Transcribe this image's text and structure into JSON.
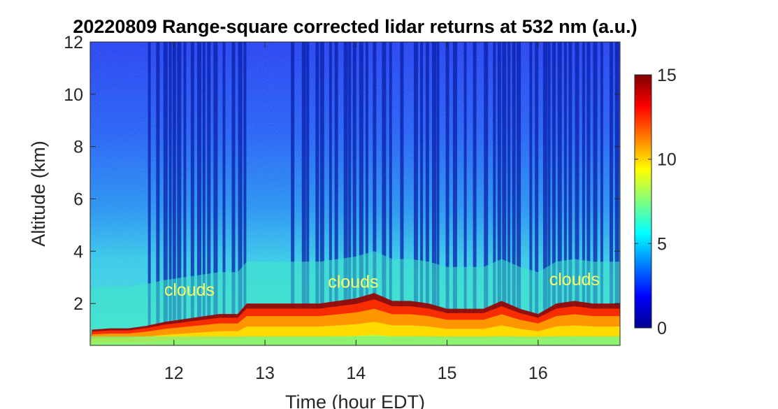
{
  "chart_data": {
    "type": "heatmap",
    "title": "20220809  Range-square corrected lidar returns at 532 nm (a.u.)",
    "xlabel": "Time (hour EDT)",
    "ylabel": "Altitude (km)",
    "xlim": [
      11.08,
      16.9
    ],
    "ylim": [
      0.4,
      12
    ],
    "x_ticks": [
      12,
      13,
      14,
      15,
      16
    ],
    "y_ticks": [
      2,
      4,
      6,
      8,
      10,
      12
    ],
    "colorbar": {
      "min": 0,
      "max": 15,
      "ticks": [
        0,
        5,
        10,
        15
      ],
      "colormap": "jet"
    },
    "cloud_top_km": [
      {
        "x": 11.1,
        "y": 1.0
      },
      {
        "x": 11.3,
        "y": 1.05
      },
      {
        "x": 11.5,
        "y": 1.05
      },
      {
        "x": 11.7,
        "y": 1.15
      },
      {
        "x": 11.9,
        "y": 1.3
      },
      {
        "x": 12.1,
        "y": 1.4
      },
      {
        "x": 12.3,
        "y": 1.5
      },
      {
        "x": 12.5,
        "y": 1.6
      },
      {
        "x": 12.7,
        "y": 1.6
      },
      {
        "x": 12.8,
        "y": 2.0
      },
      {
        "x": 13.0,
        "y": 2.0
      },
      {
        "x": 13.2,
        "y": 2.0
      },
      {
        "x": 13.4,
        "y": 2.0
      },
      {
        "x": 13.6,
        "y": 2.0
      },
      {
        "x": 13.8,
        "y": 2.1
      },
      {
        "x": 14.0,
        "y": 2.2
      },
      {
        "x": 14.2,
        "y": 2.4
      },
      {
        "x": 14.4,
        "y": 2.1
      },
      {
        "x": 14.6,
        "y": 2.1
      },
      {
        "x": 14.8,
        "y": 2.0
      },
      {
        "x": 15.0,
        "y": 1.8
      },
      {
        "x": 15.2,
        "y": 1.8
      },
      {
        "x": 15.4,
        "y": 1.8
      },
      {
        "x": 15.6,
        "y": 2.1
      },
      {
        "x": 15.8,
        "y": 1.8
      },
      {
        "x": 16.0,
        "y": 1.6
      },
      {
        "x": 16.2,
        "y": 2.0
      },
      {
        "x": 16.4,
        "y": 2.1
      },
      {
        "x": 16.6,
        "y": 2.0
      },
      {
        "x": 16.8,
        "y": 2.0
      }
    ],
    "annotations": [
      {
        "text": "clouds",
        "x": 12.17,
        "y": 2.3
      },
      {
        "text": "clouds",
        "x": 13.97,
        "y": 2.6
      },
      {
        "text": "clouds",
        "x": 16.4,
        "y": 2.7
      }
    ],
    "annotation_color": "#ffff66",
    "gaps_hours": [
      11.73,
      11.82,
      11.9,
      11.96,
      12.0,
      12.05,
      12.12,
      12.2,
      12.27,
      12.33,
      12.38,
      12.45,
      12.55,
      12.65,
      12.72,
      12.78,
      13.3,
      13.42,
      13.47,
      13.57,
      13.62,
      13.72,
      13.78,
      13.88,
      13.93,
      13.98,
      14.05,
      14.12,
      14.2,
      14.3,
      14.38,
      14.5,
      14.65,
      14.72,
      14.78,
      14.85,
      14.9,
      15.0,
      15.08,
      15.2,
      15.3,
      15.42,
      15.52,
      15.57,
      15.62,
      15.68,
      15.73,
      15.78,
      15.92,
      15.98,
      16.07,
      16.12,
      16.17,
      16.23,
      16.3,
      16.35,
      16.42,
      16.5,
      16.55,
      16.62,
      16.7,
      16.8,
      16.86
    ]
  }
}
